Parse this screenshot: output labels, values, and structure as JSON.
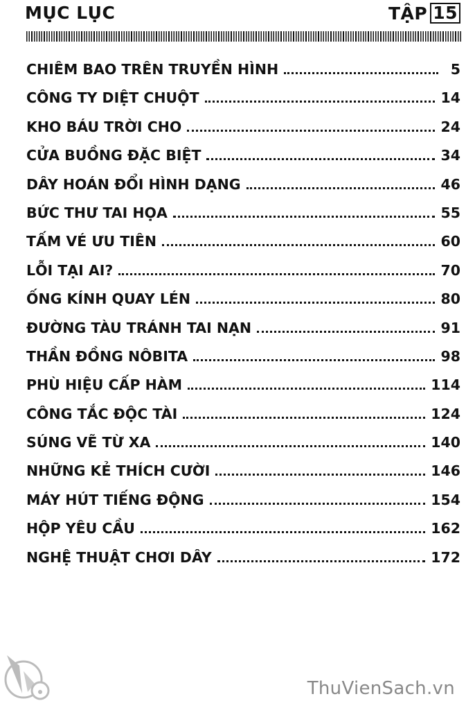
{
  "header": {
    "title": "MỤC LỤC",
    "volume_label": "TẬP",
    "volume_number": "15"
  },
  "toc": [
    {
      "title": "CHIÊM BAO TRÊN TRUYỀN HÌNH",
      "page": "5"
    },
    {
      "title": "CÔNG TY DIỆT CHUỘT",
      "page": "14"
    },
    {
      "title": "KHO BÁU TRỜI CHO",
      "page": "24"
    },
    {
      "title": "CỬA BUỒNG ĐẶC BIỆT",
      "page": "34"
    },
    {
      "title": "DÂY HOÁN ĐỔI HÌNH DẠNG",
      "page": "46"
    },
    {
      "title": "BỨC THƯ TAI HỌA",
      "page": "55"
    },
    {
      "title": "TẤM VÉ ƯU TIÊN",
      "page": "60"
    },
    {
      "title": "LỖI TẠI AI?",
      "page": "70"
    },
    {
      "title": "ỐNG KÍNH QUAY LÉN",
      "page": "80"
    },
    {
      "title": "ĐƯỜNG TÀU TRÁNH TAI NẠN",
      "page": "91"
    },
    {
      "title": "THẦN ĐỒNG NÔBITA",
      "page": "98"
    },
    {
      "title": "PHÙ HIỆU CẤP HÀM",
      "page": "114"
    },
    {
      "title": "CÔNG TẮC ĐỘC TÀI",
      "page": "124"
    },
    {
      "title": "SÚNG VẼ TỪ XA",
      "page": "140"
    },
    {
      "title": "NHỮNG KẺ THÍCH CƯỜI",
      "page": "146"
    },
    {
      "title": "MÁY HÚT TIẾNG ĐỘNG",
      "page": "154"
    },
    {
      "title": "HỘP YÊU CẦU",
      "page": "162"
    },
    {
      "title": "NGHỆ THUẬT CHƠI DÂY",
      "page": "172"
    }
  ],
  "watermark": {
    "text": "ThuVienSach.vn",
    "icon": "bell-logo-icon",
    "color": "#888888"
  }
}
